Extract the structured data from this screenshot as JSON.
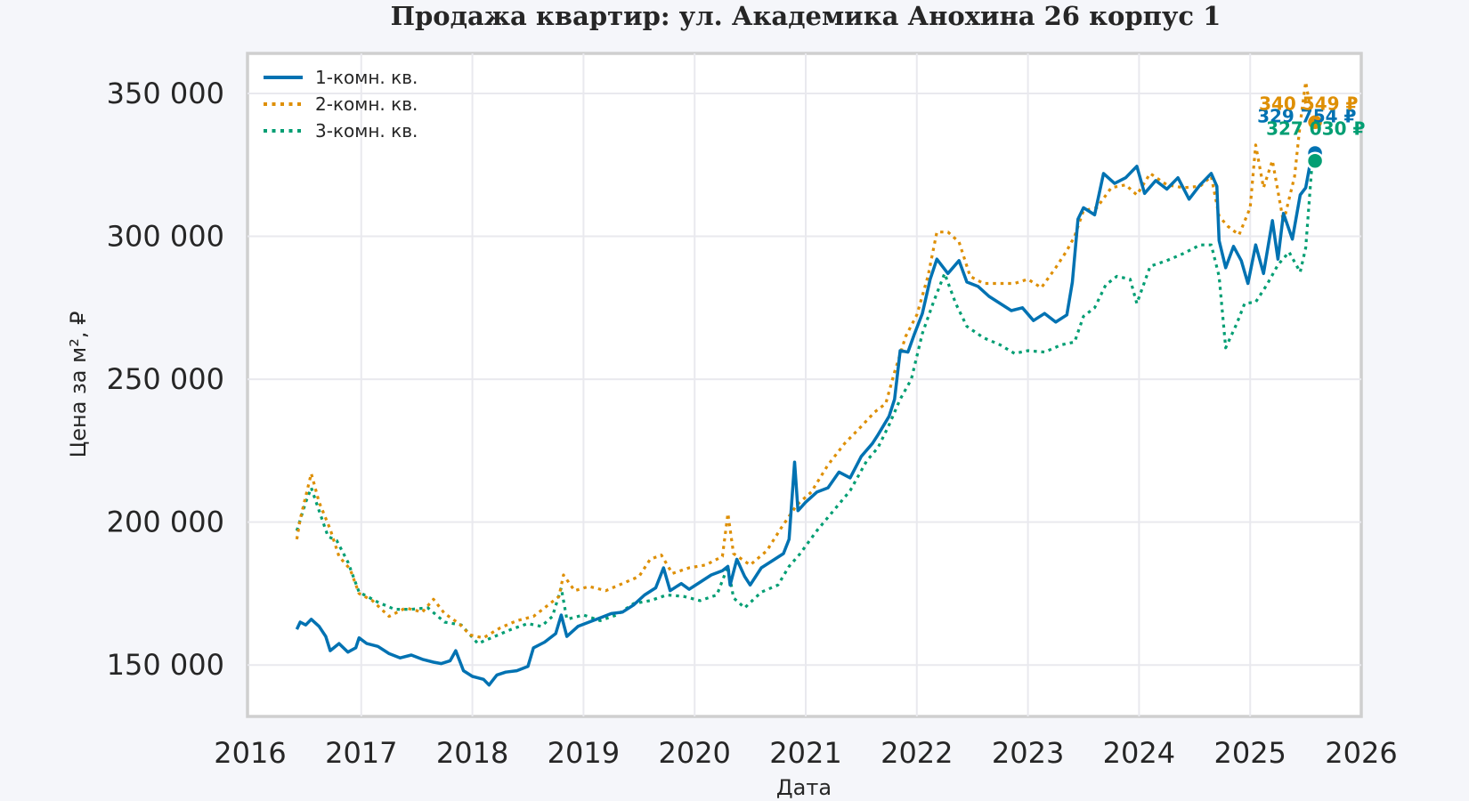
{
  "chart_data": {
    "type": "line",
    "title": "Продажа квартир: ул. Академика Анохина 26 корпус 1",
    "xlabel": "Дата",
    "ylabel": "Цена за м², ₽",
    "xlim": [
      2016.0,
      2026.0
    ],
    "ylim": [
      132000,
      364000
    ],
    "x_ticks": [
      "2016",
      "2017",
      "2018",
      "2019",
      "2020",
      "2021",
      "2022",
      "2023",
      "2024",
      "2025",
      "2026"
    ],
    "y_ticks": [
      "150 000",
      "200 000",
      "250 000",
      "300 000",
      "350 000"
    ],
    "y_tick_values": [
      150000,
      200000,
      250000,
      300000,
      350000
    ],
    "grid": true,
    "legend_position": "top-left",
    "series": [
      {
        "name": "1-комн. кв.",
        "color": "#0072b2",
        "style": "solid",
        "end_label": "329 754 ₽",
        "points": [
          [
            2016.42,
            162500
          ],
          [
            2016.45,
            165000
          ],
          [
            2016.5,
            164000
          ],
          [
            2016.55,
            166000
          ],
          [
            2016.62,
            163500
          ],
          [
            2016.68,
            160000
          ],
          [
            2016.72,
            155000
          ],
          [
            2016.8,
            157500
          ],
          [
            2016.88,
            154500
          ],
          [
            2016.95,
            156000
          ],
          [
            2016.98,
            159500
          ],
          [
            2017.05,
            157500
          ],
          [
            2017.15,
            156500
          ],
          [
            2017.25,
            154000
          ],
          [
            2017.35,
            152500
          ],
          [
            2017.45,
            153500
          ],
          [
            2017.55,
            152000
          ],
          [
            2017.65,
            151000
          ],
          [
            2017.72,
            150500
          ],
          [
            2017.8,
            151500
          ],
          [
            2017.85,
            155000
          ],
          [
            2017.92,
            148000
          ],
          [
            2018.0,
            146000
          ],
          [
            2018.1,
            145000
          ],
          [
            2018.15,
            143000
          ],
          [
            2018.22,
            146500
          ],
          [
            2018.3,
            147500
          ],
          [
            2018.4,
            148000
          ],
          [
            2018.5,
            149500
          ],
          [
            2018.55,
            156000
          ],
          [
            2018.65,
            158000
          ],
          [
            2018.75,
            161000
          ],
          [
            2018.8,
            167500
          ],
          [
            2018.85,
            160000
          ],
          [
            2018.95,
            163500
          ],
          [
            2019.05,
            165000
          ],
          [
            2019.15,
            166500
          ],
          [
            2019.25,
            168000
          ],
          [
            2019.35,
            168500
          ],
          [
            2019.45,
            171000
          ],
          [
            2019.55,
            174500
          ],
          [
            2019.65,
            177000
          ],
          [
            2019.72,
            184000
          ],
          [
            2019.78,
            176000
          ],
          [
            2019.88,
            178500
          ],
          [
            2019.95,
            176500
          ],
          [
            2020.05,
            179000
          ],
          [
            2020.15,
            181500
          ],
          [
            2020.25,
            183000
          ],
          [
            2020.3,
            184500
          ],
          [
            2020.32,
            178000
          ],
          [
            2020.38,
            187000
          ],
          [
            2020.45,
            181000
          ],
          [
            2020.5,
            178000
          ],
          [
            2020.6,
            184000
          ],
          [
            2020.7,
            186500
          ],
          [
            2020.8,
            189000
          ],
          [
            2020.85,
            194000
          ],
          [
            2020.9,
            221000
          ],
          [
            2020.93,
            204000
          ],
          [
            2021.0,
            207000
          ],
          [
            2021.1,
            210500
          ],
          [
            2021.2,
            212000
          ],
          [
            2021.3,
            217500
          ],
          [
            2021.4,
            215500
          ],
          [
            2021.5,
            223000
          ],
          [
            2021.6,
            227500
          ],
          [
            2021.65,
            230500
          ],
          [
            2021.75,
            237000
          ],
          [
            2021.8,
            243000
          ],
          [
            2021.85,
            260000
          ],
          [
            2021.92,
            259500
          ],
          [
            2021.98,
            266000
          ],
          [
            2022.05,
            273000
          ],
          [
            2022.12,
            285000
          ],
          [
            2022.18,
            292000
          ],
          [
            2022.28,
            287000
          ],
          [
            2022.38,
            291500
          ],
          [
            2022.45,
            284000
          ],
          [
            2022.55,
            282500
          ],
          [
            2022.65,
            279000
          ],
          [
            2022.75,
            276500
          ],
          [
            2022.85,
            274000
          ],
          [
            2022.95,
            275000
          ],
          [
            2023.05,
            270500
          ],
          [
            2023.15,
            273000
          ],
          [
            2023.25,
            270000
          ],
          [
            2023.35,
            272500
          ],
          [
            2023.4,
            284000
          ],
          [
            2023.45,
            306000
          ],
          [
            2023.5,
            310000
          ],
          [
            2023.6,
            307500
          ],
          [
            2023.68,
            322000
          ],
          [
            2023.78,
            318500
          ],
          [
            2023.88,
            320500
          ],
          [
            2023.98,
            324500
          ],
          [
            2024.05,
            315000
          ],
          [
            2024.15,
            319500
          ],
          [
            2024.25,
            316500
          ],
          [
            2024.35,
            320500
          ],
          [
            2024.45,
            313000
          ],
          [
            2024.55,
            318000
          ],
          [
            2024.65,
            322000
          ],
          [
            2024.7,
            317500
          ],
          [
            2024.72,
            298500
          ],
          [
            2024.78,
            289000
          ],
          [
            2024.85,
            296500
          ],
          [
            2024.92,
            291500
          ],
          [
            2024.98,
            283500
          ],
          [
            2025.05,
            297000
          ],
          [
            2025.12,
            287000
          ],
          [
            2025.2,
            305500
          ],
          [
            2025.25,
            292000
          ],
          [
            2025.3,
            308000
          ],
          [
            2025.38,
            299000
          ],
          [
            2025.45,
            314500
          ],
          [
            2025.5,
            317000
          ],
          [
            2025.56,
            329754
          ]
        ]
      },
      {
        "name": "2-комн. кв.",
        "color": "#de8f05",
        "style": "dotted",
        "end_label": "340 549 ₽",
        "points": [
          [
            2016.42,
            194000
          ],
          [
            2016.45,
            201000
          ],
          [
            2016.55,
            217000
          ],
          [
            2016.62,
            207000
          ],
          [
            2016.72,
            197500
          ],
          [
            2016.8,
            188000
          ],
          [
            2016.9,
            183500
          ],
          [
            2016.98,
            175000
          ],
          [
            2017.1,
            172500
          ],
          [
            2017.25,
            167000
          ],
          [
            2017.4,
            170000
          ],
          [
            2017.55,
            168500
          ],
          [
            2017.65,
            173000
          ],
          [
            2017.75,
            168000
          ],
          [
            2017.88,
            164500
          ],
          [
            2017.98,
            160500
          ],
          [
            2018.1,
            159500
          ],
          [
            2018.25,
            163000
          ],
          [
            2018.4,
            165500
          ],
          [
            2018.55,
            167000
          ],
          [
            2018.65,
            170000
          ],
          [
            2018.78,
            174000
          ],
          [
            2018.82,
            181500
          ],
          [
            2018.92,
            176000
          ],
          [
            2019.05,
            177500
          ],
          [
            2019.2,
            176000
          ],
          [
            2019.35,
            178500
          ],
          [
            2019.5,
            181000
          ],
          [
            2019.6,
            187000
          ],
          [
            2019.7,
            188500
          ],
          [
            2019.8,
            182000
          ],
          [
            2019.95,
            184000
          ],
          [
            2020.1,
            185000
          ],
          [
            2020.25,
            188000
          ],
          [
            2020.3,
            203000
          ],
          [
            2020.35,
            189000
          ],
          [
            2020.5,
            185000
          ],
          [
            2020.65,
            190000
          ],
          [
            2020.78,
            198000
          ],
          [
            2020.85,
            202000
          ],
          [
            2020.92,
            206000
          ],
          [
            2021.05,
            210500
          ],
          [
            2021.2,
            220000
          ],
          [
            2021.35,
            227500
          ],
          [
            2021.5,
            233500
          ],
          [
            2021.62,
            238500
          ],
          [
            2021.72,
            241500
          ],
          [
            2021.8,
            252500
          ],
          [
            2021.9,
            265000
          ],
          [
            2022.0,
            272500
          ],
          [
            2022.1,
            286000
          ],
          [
            2022.18,
            301500
          ],
          [
            2022.28,
            301500
          ],
          [
            2022.38,
            298000
          ],
          [
            2022.48,
            286000
          ],
          [
            2022.6,
            283500
          ],
          [
            2022.75,
            283500
          ],
          [
            2022.88,
            283500
          ],
          [
            2023.0,
            285000
          ],
          [
            2023.12,
            282000
          ],
          [
            2023.25,
            289000
          ],
          [
            2023.35,
            295000
          ],
          [
            2023.42,
            300000
          ],
          [
            2023.5,
            309000
          ],
          [
            2023.62,
            310000
          ],
          [
            2023.75,
            317000
          ],
          [
            2023.88,
            318000
          ],
          [
            2023.98,
            314500
          ],
          [
            2024.1,
            322000
          ],
          [
            2024.25,
            318000
          ],
          [
            2024.4,
            317000
          ],
          [
            2024.55,
            317500
          ],
          [
            2024.65,
            321000
          ],
          [
            2024.72,
            307000
          ],
          [
            2024.8,
            303500
          ],
          [
            2024.9,
            300500
          ],
          [
            2025.0,
            310000
          ],
          [
            2025.05,
            332000
          ],
          [
            2025.12,
            317000
          ],
          [
            2025.2,
            326500
          ],
          [
            2025.3,
            305000
          ],
          [
            2025.4,
            321000
          ],
          [
            2025.45,
            339500
          ],
          [
            2025.5,
            354000
          ],
          [
            2025.56,
            340549
          ]
        ]
      },
      {
        "name": "3-комн. кв.",
        "color": "#029e73",
        "style": "dotted",
        "end_label": "327 030 ₽",
        "points": [
          [
            2016.42,
            197000
          ],
          [
            2016.5,
            207000
          ],
          [
            2016.55,
            212000
          ],
          [
            2016.62,
            204000
          ],
          [
            2016.7,
            195000
          ],
          [
            2016.78,
            193500
          ],
          [
            2016.88,
            186000
          ],
          [
            2016.98,
            175500
          ],
          [
            2017.15,
            172000
          ],
          [
            2017.3,
            169500
          ],
          [
            2017.45,
            169500
          ],
          [
            2017.6,
            170000
          ],
          [
            2017.75,
            165000
          ],
          [
            2017.9,
            164000
          ],
          [
            2018.05,
            157500
          ],
          [
            2018.2,
            160000
          ],
          [
            2018.35,
            162500
          ],
          [
            2018.5,
            164500
          ],
          [
            2018.62,
            163500
          ],
          [
            2018.72,
            167000
          ],
          [
            2018.8,
            177000
          ],
          [
            2018.85,
            166000
          ],
          [
            2019.0,
            167500
          ],
          [
            2019.15,
            165500
          ],
          [
            2019.3,
            167500
          ],
          [
            2019.45,
            171500
          ],
          [
            2019.6,
            172500
          ],
          [
            2019.75,
            174500
          ],
          [
            2019.9,
            174000
          ],
          [
            2020.05,
            172500
          ],
          [
            2020.2,
            174500
          ],
          [
            2020.3,
            184500
          ],
          [
            2020.35,
            173500
          ],
          [
            2020.45,
            170000
          ],
          [
            2020.6,
            175500
          ],
          [
            2020.75,
            178000
          ],
          [
            2020.85,
            184500
          ],
          [
            2020.95,
            189000
          ],
          [
            2021.1,
            197000
          ],
          [
            2021.25,
            204000
          ],
          [
            2021.4,
            211000
          ],
          [
            2021.55,
            221500
          ],
          [
            2021.65,
            226000
          ],
          [
            2021.75,
            234000
          ],
          [
            2021.85,
            243000
          ],
          [
            2021.95,
            250000
          ],
          [
            2022.05,
            266000
          ],
          [
            2022.15,
            277000
          ],
          [
            2022.25,
            287000
          ],
          [
            2022.35,
            276500
          ],
          [
            2022.45,
            268500
          ],
          [
            2022.6,
            264500
          ],
          [
            2022.75,
            262000
          ],
          [
            2022.88,
            259000
          ],
          [
            2023.0,
            260000
          ],
          [
            2023.15,
            259500
          ],
          [
            2023.3,
            262000
          ],
          [
            2023.42,
            263000
          ],
          [
            2023.5,
            272000
          ],
          [
            2023.6,
            275000
          ],
          [
            2023.7,
            283000
          ],
          [
            2023.8,
            286000
          ],
          [
            2023.92,
            285000
          ],
          [
            2023.98,
            276500
          ],
          [
            2024.1,
            289500
          ],
          [
            2024.25,
            291500
          ],
          [
            2024.4,
            294000
          ],
          [
            2024.55,
            297000
          ],
          [
            2024.65,
            297000
          ],
          [
            2024.72,
            286000
          ],
          [
            2024.78,
            261000
          ],
          [
            2024.88,
            269500
          ],
          [
            2024.95,
            276500
          ],
          [
            2025.05,
            277000
          ],
          [
            2025.15,
            283000
          ],
          [
            2025.25,
            290000
          ],
          [
            2025.35,
            294500
          ],
          [
            2025.45,
            287500
          ],
          [
            2025.5,
            296000
          ],
          [
            2025.56,
            327030
          ]
        ]
      }
    ]
  }
}
